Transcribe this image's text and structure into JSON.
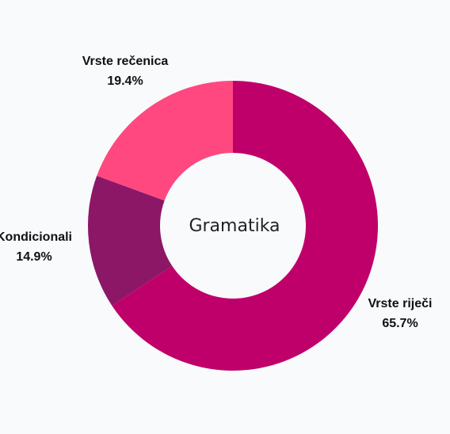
{
  "chart_data": {
    "type": "pie",
    "center_label": "Gramatika",
    "slices": [
      {
        "label": "Vrste riječi",
        "value": 65.7,
        "value_label": "65.7%",
        "color": "#c0006a"
      },
      {
        "label": "Kondicionali",
        "value": 14.9,
        "value_label": "14.9%",
        "color": "#8c1766"
      },
      {
        "label": "Vrste rečenica",
        "value": 19.4,
        "value_label": "19.4%",
        "color": "#ff4880"
      }
    ],
    "start_angle_deg": 0,
    "direction": "clockwise",
    "background": "#f8fafc"
  }
}
